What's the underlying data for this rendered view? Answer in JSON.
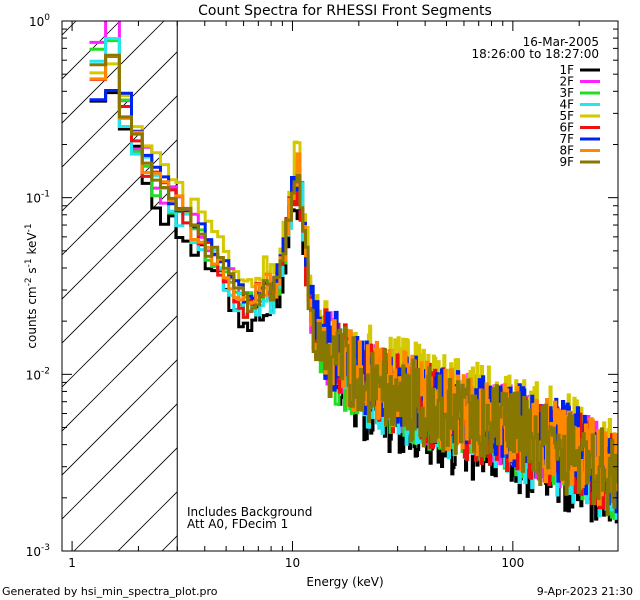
{
  "chart_data": {
    "type": "line",
    "title": "Count Spectra for RHESSI Front Segments",
    "xlabel": "Energy (keV)",
    "ylabel_parts": [
      "counts cm",
      "-2",
      " s",
      "-1",
      " keV",
      "-1"
    ],
    "x_scale": "log",
    "y_scale": "log",
    "xlim": [
      0.9,
      300
    ],
    "ylim": [
      0.001,
      1
    ],
    "x_ticks": [
      {
        "value": 1,
        "label": "1"
      },
      {
        "value": 10,
        "label": "10"
      },
      {
        "value": 100,
        "label": "100"
      }
    ],
    "y_ticks": [
      {
        "value": 1,
        "label": "10",
        "exp": "0"
      },
      {
        "value": 0.1,
        "label": "10",
        "exp": "-1"
      },
      {
        "value": 0.01,
        "label": "10",
        "exp": "-2"
      },
      {
        "value": 0.001,
        "label": "10",
        "exp": "-3"
      }
    ],
    "shaded_region": {
      "x_max": 3,
      "pattern": "hatched"
    },
    "date": "16-Mar-2005",
    "time_range": "18:26:00 to 18:27:00",
    "annotations": [
      "Includes Background",
      "Att A0, FDecim 1"
    ],
    "footer_left": "Generated by hsi_min_spectra_plot.pro",
    "footer_right": "9-Apr-2023 21:30",
    "series": [
      {
        "name": "1F",
        "color": "#000000",
        "scale": 0.75,
        "start": 0.42
      },
      {
        "name": "2F",
        "color": "#ff22ff",
        "scale": 1.0,
        "start": 0.9
      },
      {
        "name": "3F",
        "color": "#22dd22",
        "scale": 0.93,
        "start": 0.82
      },
      {
        "name": "4F",
        "color": "#22e6f0",
        "scale": 0.87,
        "start": 0.7
      },
      {
        "name": "5F",
        "color": "#d4c800",
        "scale": 1.2,
        "start": 0.6
      },
      {
        "name": "6F",
        "color": "#ee1111",
        "scale": 0.96,
        "start": 0.55
      },
      {
        "name": "7F",
        "color": "#0022ee",
        "scale": 1.05,
        "start": 0.42
      },
      {
        "name": "8F",
        "color": "#ff8800",
        "scale": 1.0,
        "start": 0.55
      },
      {
        "name": "9F",
        "color": "#887700",
        "scale": 0.94,
        "start": 0.66
      }
    ],
    "base_spectrum": [
      [
        1.2,
        0.95
      ],
      [
        1.35,
        0.62
      ],
      [
        1.55,
        0.42
      ],
      [
        1.75,
        0.26
      ],
      [
        2.0,
        0.18
      ],
      [
        2.3,
        0.13
      ],
      [
        2.6,
        0.105
      ],
      [
        3.0,
        0.085
      ],
      [
        3.5,
        0.068
      ],
      [
        4.0,
        0.055
      ],
      [
        4.5,
        0.045
      ],
      [
        5.0,
        0.036
      ],
      [
        5.5,
        0.03
      ],
      [
        6.0,
        0.026
      ],
      [
        6.5,
        0.027
      ],
      [
        7.0,
        0.03
      ],
      [
        7.5,
        0.033
      ],
      [
        8.0,
        0.03
      ],
      [
        8.5,
        0.034
      ],
      [
        9.0,
        0.05
      ],
      [
        9.5,
        0.08
      ],
      [
        10.0,
        0.12
      ],
      [
        10.5,
        0.14
      ],
      [
        11.0,
        0.085
      ],
      [
        11.5,
        0.04
      ],
      [
        12.0,
        0.022
      ],
      [
        13.0,
        0.016
      ],
      [
        15.0,
        0.013
      ],
      [
        18.0,
        0.011
      ],
      [
        22.0,
        0.0095
      ],
      [
        27.0,
        0.0085
      ],
      [
        33.0,
        0.0078
      ],
      [
        40.0,
        0.007
      ],
      [
        50.0,
        0.0064
      ],
      [
        60.0,
        0.006
      ],
      [
        75.0,
        0.0055
      ],
      [
        90.0,
        0.0052
      ],
      [
        110.0,
        0.0048
      ],
      [
        130.0,
        0.0044
      ],
      [
        160.0,
        0.004
      ],
      [
        200.0,
        0.0036
      ],
      [
        250.0,
        0.0031
      ],
      [
        300.0,
        0.0027
      ]
    ]
  }
}
